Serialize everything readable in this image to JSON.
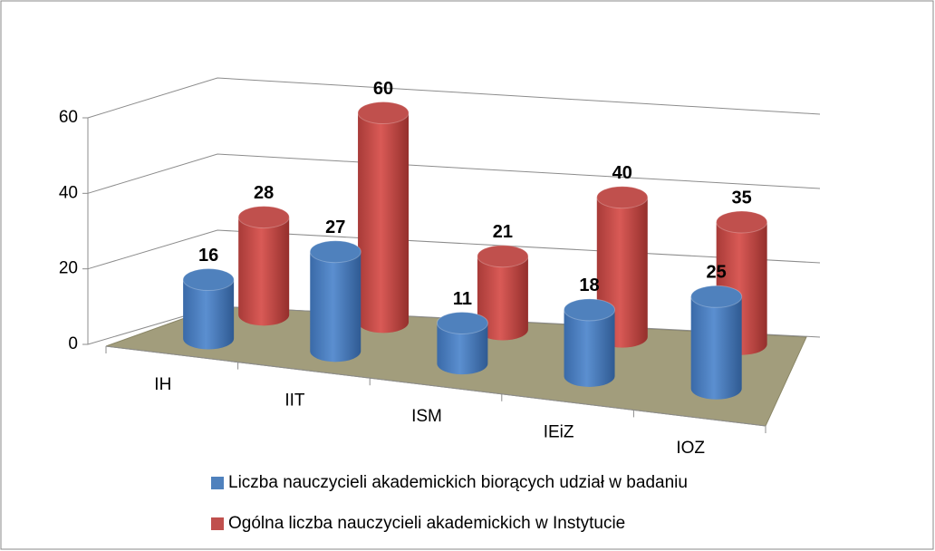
{
  "chart_data": {
    "type": "bar3d",
    "categories": [
      "IH",
      "IIT",
      "ISM",
      "IEiZ",
      "IOZ"
    ],
    "series": [
      {
        "name": "Liczba nauczycieli akademickich biorących udział w badaniu",
        "color": "#4f81bd",
        "values": [
          16,
          27,
          11,
          18,
          25
        ]
      },
      {
        "name": "Ogólna liczba nauczycieli akademickich w Instytucie",
        "color": "#c0504d",
        "values": [
          28,
          60,
          21,
          40,
          35
        ]
      }
    ],
    "ylim": [
      0,
      60
    ],
    "yticks": [
      0,
      20,
      40,
      60
    ],
    "grid": true,
    "legend": "bottom"
  }
}
